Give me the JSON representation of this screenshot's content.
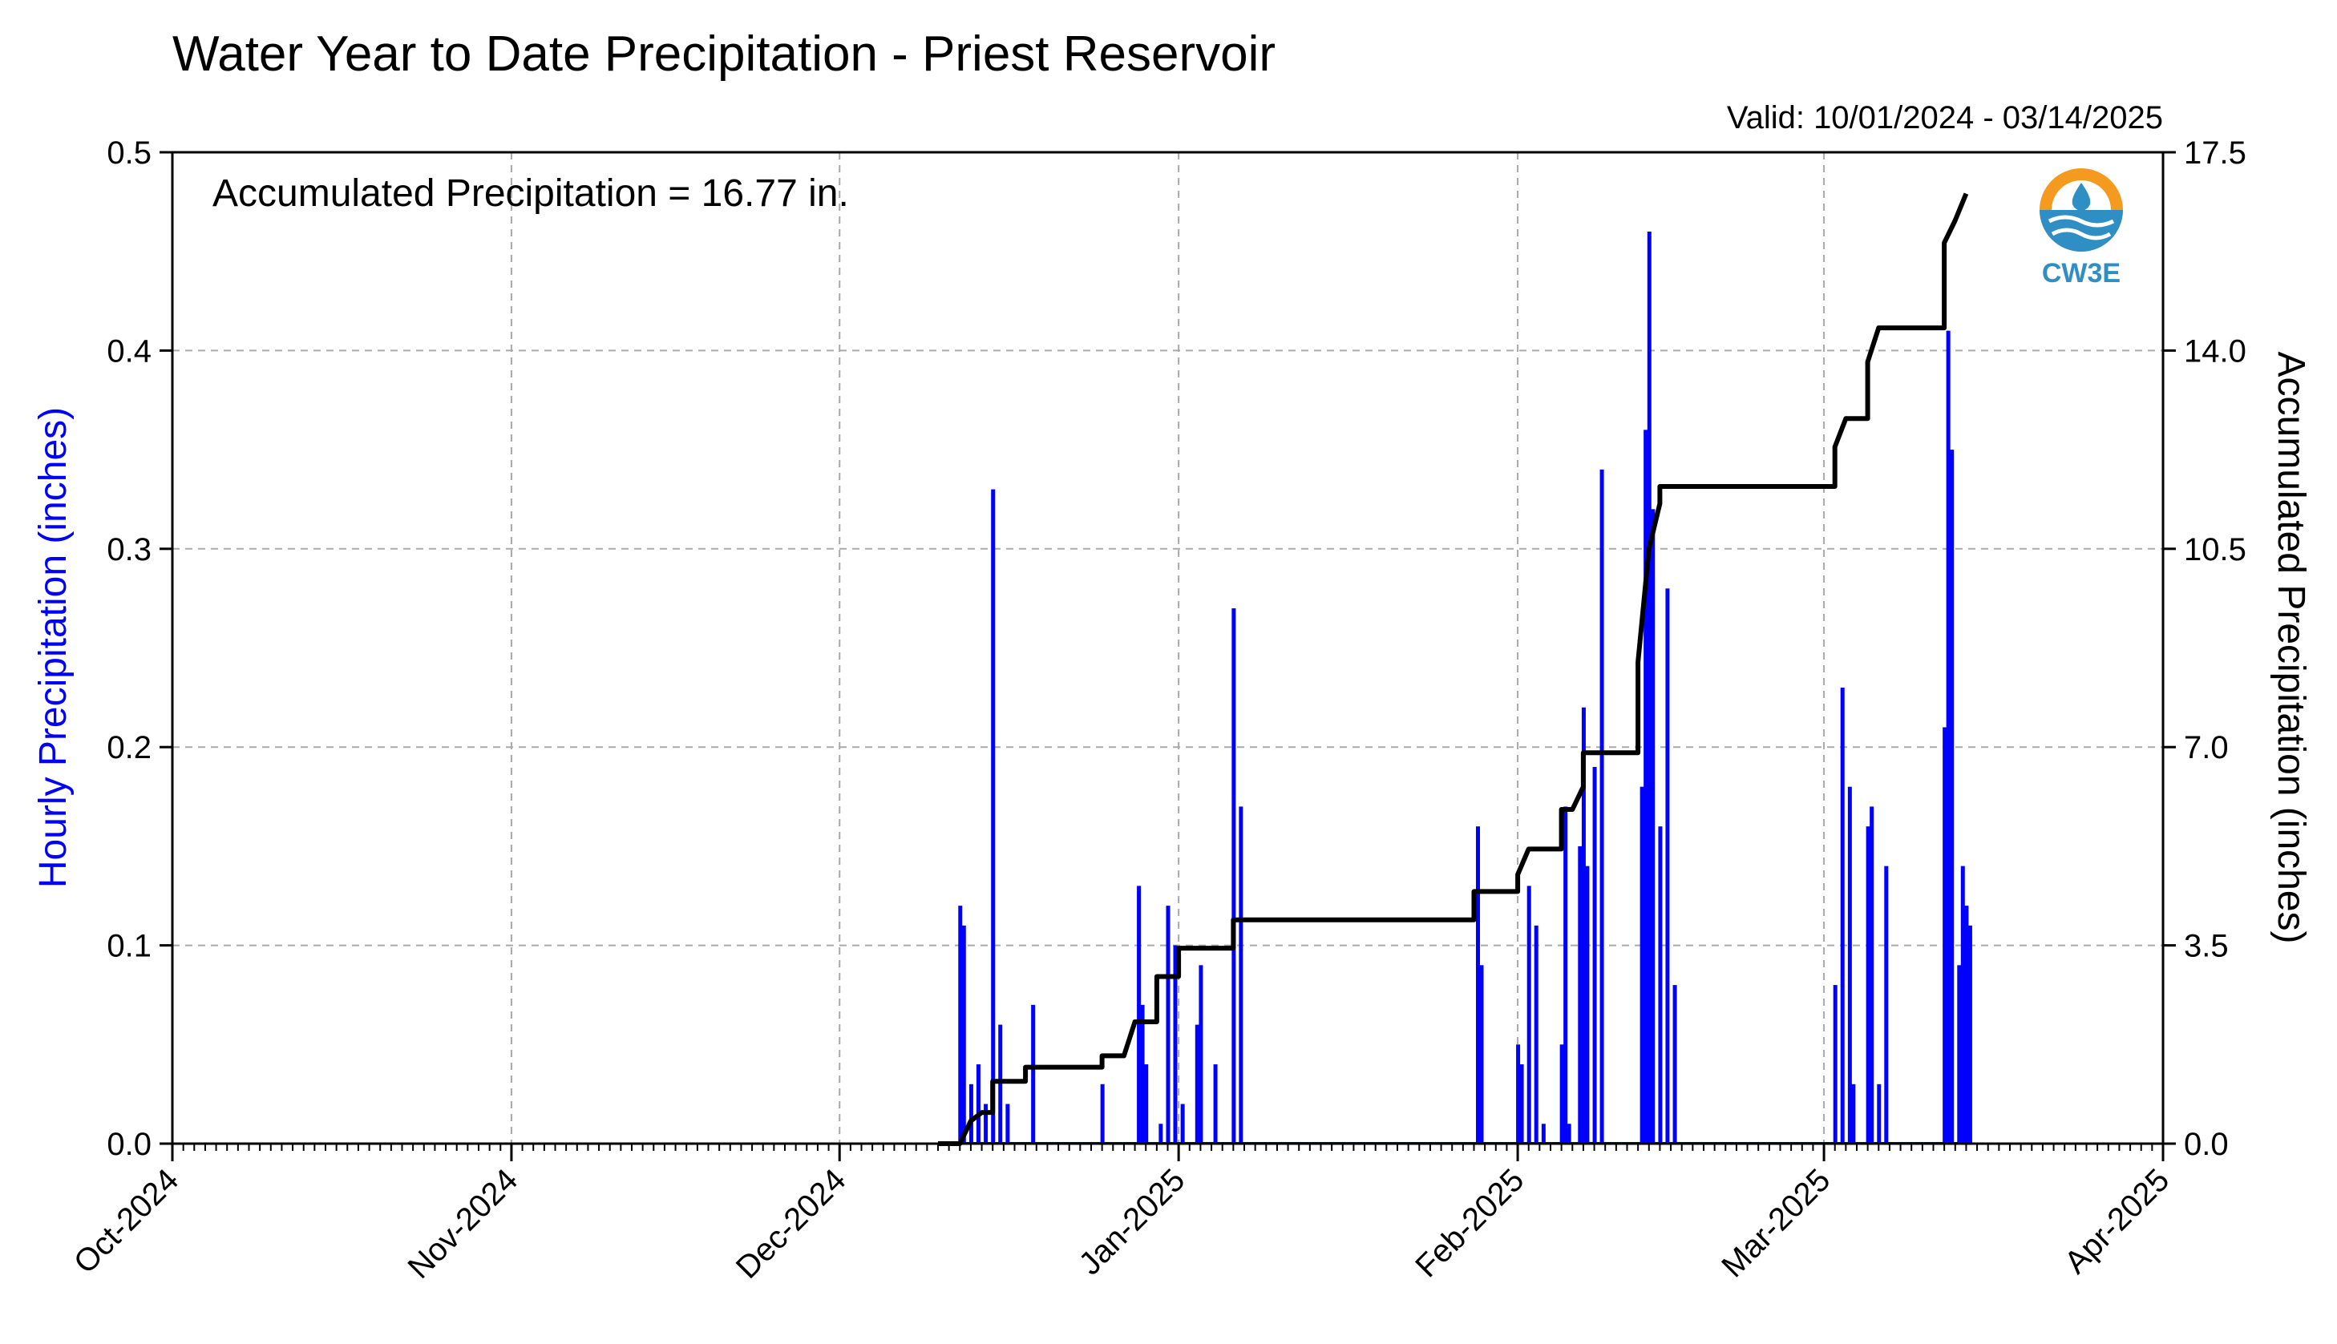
{
  "title": "Water Year to Date Precipitation - Priest Reservoir",
  "valid_text": "Valid: 10/01/2024 - 03/14/2025",
  "annotation": "Accumulated Precipitation = 16.77 in.",
  "logo_text": "CW3E",
  "chart_data": {
    "type": "bar",
    "xlabel": "",
    "ylabel_left": "Hourly Precipitation (inches)",
    "ylabel_right": "Accumulated Precipitation (inches)",
    "x_ticks": [
      "Oct-2024",
      "Nov-2024",
      "Dec-2024",
      "Jan-2025",
      "Feb-2025",
      "Mar-2025",
      "Apr-2025"
    ],
    "y_left_ticks": [
      "0.0",
      "0.1",
      "0.2",
      "0.3",
      "0.4",
      "0.5"
    ],
    "y_right_ticks": [
      "0.0",
      "3.5",
      "7.0",
      "10.5",
      "14.0",
      "17.5"
    ],
    "x_range": [
      "2024-10-01",
      "2025-04-01"
    ],
    "ylim_left": [
      0,
      0.5
    ],
    "ylim_right": [
      0,
      17.5
    ],
    "grid": true,
    "colors": {
      "hourly": "#0000ff",
      "accumulated": "#000000"
    },
    "series": [
      {
        "name": "Hourly Precipitation (inches)",
        "type": "bar",
        "points": [
          [
            "2024-12-12",
            0.12
          ],
          [
            "2024-12-12",
            0.11
          ],
          [
            "2024-12-13",
            0.04
          ],
          [
            "2024-12-13",
            0.03
          ],
          [
            "2024-12-14",
            0.02
          ],
          [
            "2024-12-15",
            0.06
          ],
          [
            "2024-12-15",
            0.33
          ],
          [
            "2024-12-16",
            0.02
          ],
          [
            "2024-12-18",
            0.07
          ],
          [
            "2024-12-25",
            0.03
          ],
          [
            "2024-12-28",
            0.13
          ],
          [
            "2024-12-28",
            0.07
          ],
          [
            "2024-12-29",
            0.04
          ],
          [
            "2024-12-30",
            0.01
          ],
          [
            "2024-12-31",
            0.1
          ],
          [
            "2024-12-31",
            0.12
          ],
          [
            "2025-01-01",
            0.02
          ],
          [
            "2025-01-02",
            0.06
          ],
          [
            "2025-01-03",
            0.09
          ],
          [
            "2025-01-04",
            0.04
          ],
          [
            "2025-01-06",
            0.17
          ],
          [
            "2025-01-06",
            0.27
          ],
          [
            "2025-01-28",
            0.16
          ],
          [
            "2025-01-28",
            0.09
          ],
          [
            "2025-02-01",
            0.05
          ],
          [
            "2025-02-01",
            0.04
          ],
          [
            "2025-02-02",
            0.11
          ],
          [
            "2025-02-02",
            0.13
          ],
          [
            "2025-02-03",
            0.01
          ],
          [
            "2025-02-05",
            0.01
          ],
          [
            "2025-02-05",
            0.05
          ],
          [
            "2025-02-05",
            0.17
          ],
          [
            "2025-02-06",
            0.15
          ],
          [
            "2025-02-07",
            0.22
          ],
          [
            "2025-02-07",
            0.14
          ],
          [
            "2025-02-08",
            0.34
          ],
          [
            "2025-02-08",
            0.19
          ],
          [
            "2025-02-12",
            0.18
          ],
          [
            "2025-02-12",
            0.36
          ],
          [
            "2025-02-13",
            0.46
          ],
          [
            "2025-02-13",
            0.32
          ],
          [
            "2025-02-14",
            0.28
          ],
          [
            "2025-02-14",
            0.16
          ],
          [
            "2025-02-15",
            0.08
          ],
          [
            "2025-03-02",
            0.23
          ],
          [
            "2025-03-02",
            0.08
          ],
          [
            "2025-03-03",
            0.18
          ],
          [
            "2025-03-03",
            0.03
          ],
          [
            "2025-03-05",
            0.16
          ],
          [
            "2025-03-05",
            0.17
          ],
          [
            "2025-03-06",
            0.14
          ],
          [
            "2025-03-06",
            0.03
          ],
          [
            "2025-03-12",
            0.41
          ],
          [
            "2025-03-12",
            0.35
          ],
          [
            "2025-03-12",
            0.21
          ],
          [
            "2025-03-13",
            0.09
          ],
          [
            "2025-03-13",
            0.14
          ],
          [
            "2025-03-14",
            0.12
          ],
          [
            "2025-03-14",
            0.11
          ]
        ]
      },
      {
        "name": "Accumulated Precipitation (inches)",
        "type": "step-line",
        "points": [
          [
            "2024-12-10",
            0.0
          ],
          [
            "2024-12-12",
            0.0
          ],
          [
            "2024-12-13",
            0.4
          ],
          [
            "2024-12-14",
            0.55
          ],
          [
            "2024-12-15",
            0.55
          ],
          [
            "2024-12-15",
            1.1
          ],
          [
            "2024-12-18",
            1.1
          ],
          [
            "2024-12-18",
            1.35
          ],
          [
            "2024-12-25",
            1.35
          ],
          [
            "2024-12-25",
            1.55
          ],
          [
            "2024-12-27",
            1.55
          ],
          [
            "2024-12-28",
            2.15
          ],
          [
            "2024-12-30",
            2.15
          ],
          [
            "2024-12-30",
            2.95
          ],
          [
            "2025-01-01",
            2.95
          ],
          [
            "2025-01-01",
            3.45
          ],
          [
            "2025-01-06",
            3.45
          ],
          [
            "2025-01-06",
            3.95
          ],
          [
            "2025-01-28",
            3.95
          ],
          [
            "2025-01-28",
            4.45
          ],
          [
            "2025-02-01",
            4.45
          ],
          [
            "2025-02-01",
            4.75
          ],
          [
            "2025-02-02",
            5.2
          ],
          [
            "2025-02-05",
            5.2
          ],
          [
            "2025-02-05",
            5.9
          ],
          [
            "2025-02-06",
            5.9
          ],
          [
            "2025-02-07",
            6.3
          ],
          [
            "2025-02-07",
            6.9
          ],
          [
            "2025-02-12",
            6.9
          ],
          [
            "2025-02-12",
            8.5
          ],
          [
            "2025-02-13",
            10.5
          ],
          [
            "2025-02-14",
            11.3
          ],
          [
            "2025-02-14",
            11.6
          ],
          [
            "2025-03-02",
            11.6
          ],
          [
            "2025-03-02",
            12.3
          ],
          [
            "2025-03-03",
            12.8
          ],
          [
            "2025-03-05",
            12.8
          ],
          [
            "2025-03-05",
            13.8
          ],
          [
            "2025-03-06",
            14.4
          ],
          [
            "2025-03-12",
            14.4
          ],
          [
            "2025-03-12",
            15.9
          ],
          [
            "2025-03-13",
            16.3
          ],
          [
            "2025-03-14",
            16.77
          ]
        ]
      }
    ]
  }
}
